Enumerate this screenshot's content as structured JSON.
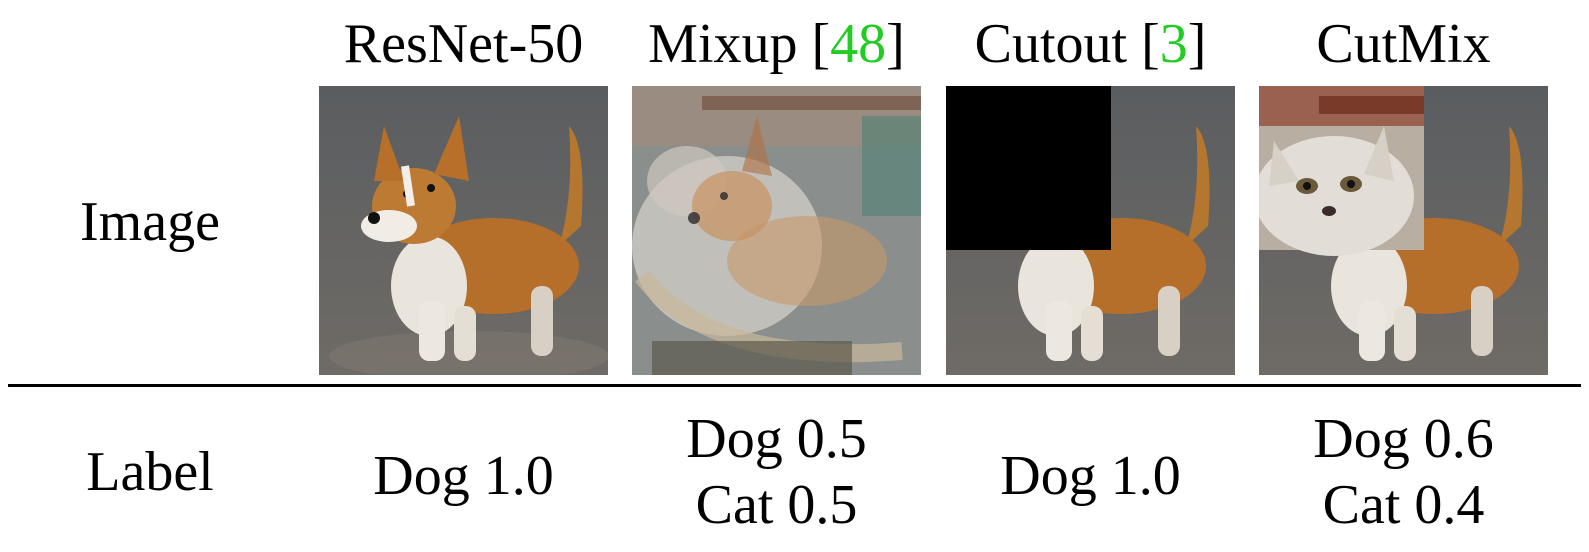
{
  "columns": [
    {
      "name": "ResNet-50",
      "citation": "",
      "image_description": "corgi dog standing on wet pavement",
      "labels": [
        "Dog 1.0"
      ]
    },
    {
      "name": "Mixup",
      "citation": "48",
      "image_description": "dog image blended with a cat image",
      "labels": [
        "Dog 0.5",
        "Cat 0.5"
      ]
    },
    {
      "name": "Cutout",
      "citation": "3",
      "image_description": "dog image with a black square patch removed at top-left",
      "labels": [
        "Dog 1.0"
      ]
    },
    {
      "name": "CutMix",
      "citation": "",
      "image_description": "dog image with a cat face patch pasted at top-left",
      "labels": [
        "Dog 0.6",
        "Cat 0.4"
      ]
    }
  ],
  "rows": {
    "image": "Image",
    "label": "Label"
  },
  "colors": {
    "citation": "#22cc22",
    "rule": "#000000",
    "cutout_patch": "#000000"
  }
}
